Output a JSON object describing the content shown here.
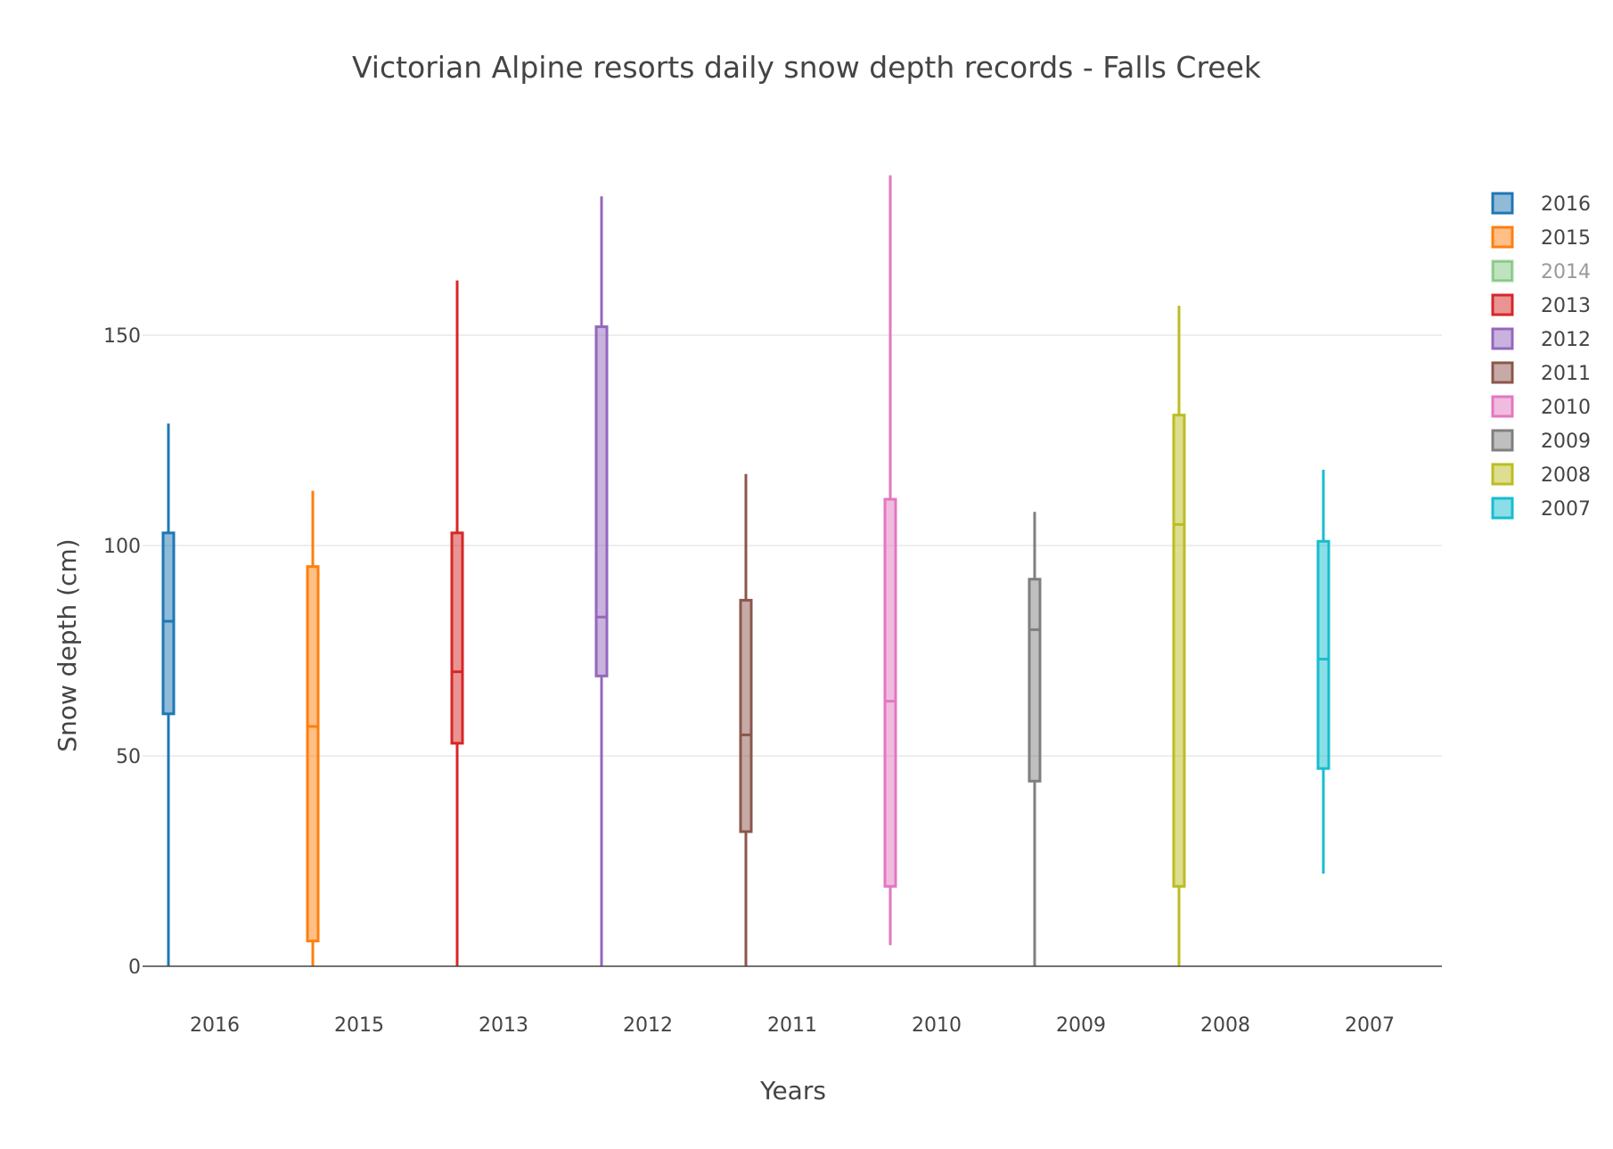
{
  "chart_data": {
    "type": "box",
    "title": "Victorian Alpine resorts daily snow depth records - Falls Creek",
    "xlabel": "Years",
    "ylabel": "Snow  depth (cm)",
    "ylim": [
      0,
      200
    ],
    "yticks": [
      0,
      50,
      100,
      150
    ],
    "grid": true,
    "legend_placement": "top-right",
    "categories": [
      "2016",
      "2015",
      "2013",
      "2012",
      "2011",
      "2010",
      "2009",
      "2008",
      "2007"
    ],
    "series": [
      {
        "name": "2016",
        "category": "2016",
        "color": "#1f77b4",
        "visible": true,
        "min": 0,
        "q1": 60,
        "median": 82,
        "q3": 103,
        "max": 129
      },
      {
        "name": "2015",
        "category": "2015",
        "color": "#ff7f0e",
        "visible": true,
        "min": 0,
        "q1": 6,
        "median": 57,
        "q3": 95,
        "max": 113
      },
      {
        "name": "2014",
        "category": null,
        "color": "#2ca02c",
        "visible": false
      },
      {
        "name": "2013",
        "category": "2013",
        "color": "#d62728",
        "visible": true,
        "min": 0,
        "q1": 53,
        "median": 70,
        "q3": 103,
        "max": 163
      },
      {
        "name": "2012",
        "category": "2012",
        "color": "#9467bd",
        "visible": true,
        "min": 0,
        "q1": 69,
        "median": 83,
        "q3": 152,
        "max": 183
      },
      {
        "name": "2011",
        "category": "2011",
        "color": "#8c564b",
        "visible": true,
        "min": 0,
        "q1": 32,
        "median": 55,
        "q3": 87,
        "max": 117
      },
      {
        "name": "2010",
        "category": "2010",
        "color": "#e377c2",
        "visible": true,
        "min": 5,
        "q1": 19,
        "median": 63,
        "q3": 111,
        "max": 188
      },
      {
        "name": "2009",
        "category": "2009",
        "color": "#7f7f7f",
        "visible": true,
        "min": 0,
        "q1": 44,
        "median": 80,
        "q3": 92,
        "max": 108
      },
      {
        "name": "2008",
        "category": "2008",
        "color": "#bcbd22",
        "visible": true,
        "min": 0,
        "q1": 19,
        "median": 105,
        "q3": 131,
        "max": 157
      },
      {
        "name": "2007",
        "category": "2007",
        "color": "#17becf",
        "visible": true,
        "min": 22,
        "q1": 47,
        "median": 73,
        "q3": 101,
        "max": 118
      }
    ]
  }
}
